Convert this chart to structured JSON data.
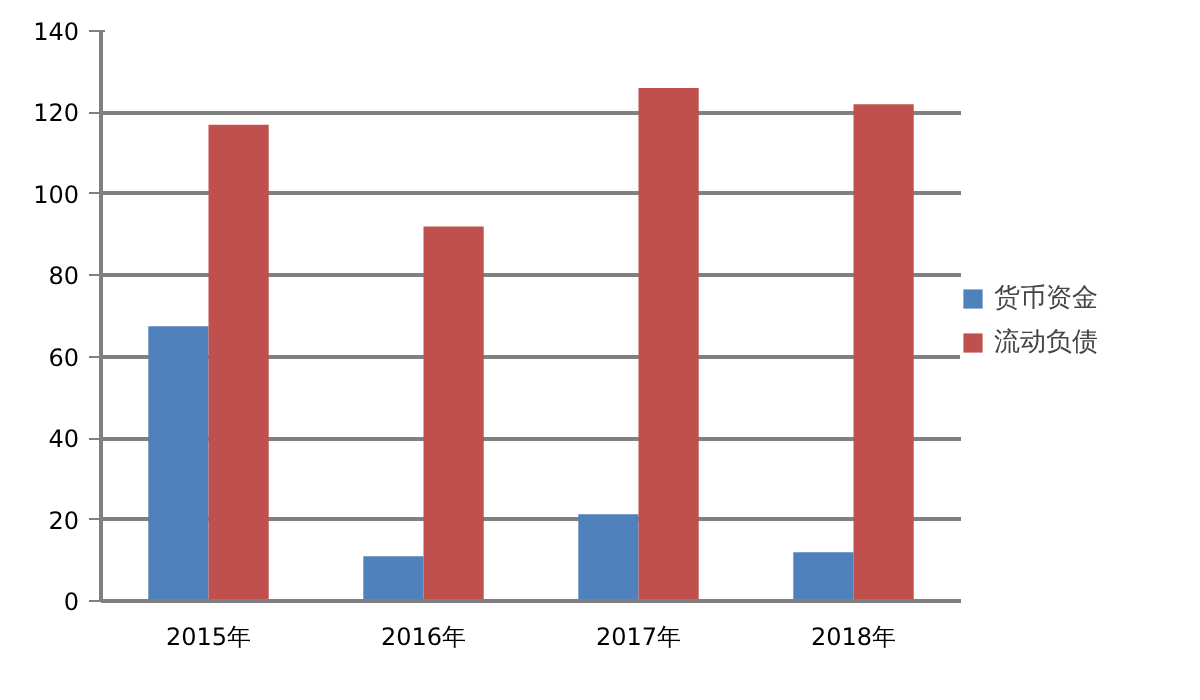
{
  "chart_data": {
    "type": "bar",
    "categories": [
      "2015年",
      "2016年",
      "2017年",
      "2018年"
    ],
    "series": [
      {
        "name": "货币资金",
        "color": "#4f81bd",
        "values": [
          67.5,
          11,
          21.3,
          12
        ]
      },
      {
        "name": "流动负债",
        "color": "#c0504d",
        "values": [
          117,
          92,
          126,
          122
        ]
      }
    ],
    "ylim": [
      0,
      140
    ],
    "yticks": [
      0,
      20,
      40,
      60,
      80,
      100,
      120,
      140
    ],
    "grid": "y",
    "legend": "right"
  }
}
